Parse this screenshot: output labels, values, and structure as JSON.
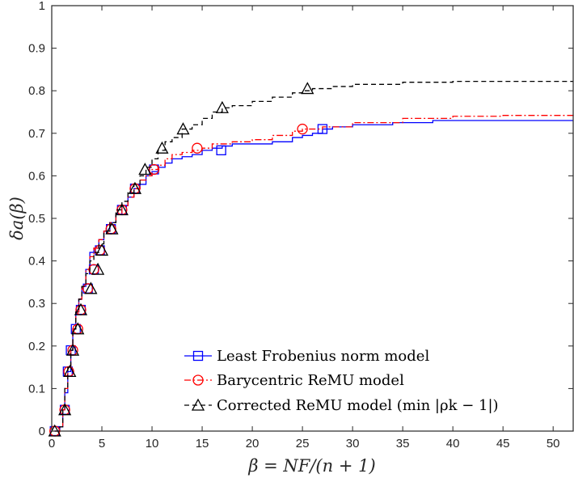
{
  "chart_data": {
    "type": "line",
    "title": "",
    "xlabel": "β = NF/(n + 1)",
    "ylabel": "δa(β)",
    "xlim": [
      0,
      52
    ],
    "ylim": [
      0,
      1
    ],
    "xticks": [
      0,
      5,
      10,
      15,
      20,
      25,
      30,
      35,
      40,
      45,
      50
    ],
    "yticks": [
      0,
      0.1,
      0.2,
      0.3,
      0.4,
      0.5,
      0.6,
      0.7,
      0.8,
      0.9,
      1
    ],
    "xtick_labels": [
      "0",
      "5",
      "10",
      "15",
      "20",
      "25",
      "30",
      "35",
      "40",
      "45",
      "50"
    ],
    "ytick_labels": [
      "0",
      "0.1",
      "0.2",
      "0.3",
      "0.4",
      "0.5",
      "0.6",
      "0.7",
      "0.8",
      "0.9",
      "1"
    ],
    "grid": false,
    "legend_position": "bottom-right",
    "series": [
      {
        "name": "Least Frobenius norm model",
        "color": "#0000ff",
        "line_style": "solid",
        "marker": "square",
        "x": [
          0.3,
          0.5,
          0.8,
          1.1,
          1.3,
          1.6,
          1.9,
          2.1,
          2.4,
          2.7,
          3.0,
          3.4,
          3.8,
          4.2,
          4.7,
          5.2,
          5.8,
          6.4,
          7.0,
          7.6,
          8.2,
          8.8,
          9.4,
          10.0,
          10.6,
          11.3,
          12.0,
          13.0,
          14.0,
          15.0,
          16.0,
          17.0,
          18.0,
          20.0,
          22.0,
          24.0,
          25.0,
          26.0,
          27.0,
          28.0,
          30.0,
          32.0,
          34.0,
          36.0,
          38.0,
          40.0,
          45.0,
          52.0
        ],
        "y": [
          0.0,
          0.0,
          0.01,
          0.05,
          0.09,
          0.14,
          0.19,
          0.24,
          0.28,
          0.31,
          0.34,
          0.38,
          0.42,
          0.43,
          0.45,
          0.47,
          0.49,
          0.51,
          0.53,
          0.55,
          0.57,
          0.58,
          0.6,
          0.61,
          0.62,
          0.63,
          0.64,
          0.645,
          0.65,
          0.66,
          0.665,
          0.67,
          0.675,
          0.675,
          0.68,
          0.69,
          0.695,
          0.7,
          0.71,
          0.715,
          0.72,
          0.72,
          0.725,
          0.725,
          0.73,
          0.73,
          0.73,
          0.73
        ],
        "marker_x": [
          0.3,
          1.3,
          1.6,
          1.9,
          2.4,
          2.9,
          3.6,
          4.2,
          4.8,
          5.9,
          7.0,
          8.3,
          10.2,
          16.9,
          27.0
        ],
        "marker_y": [
          0.0,
          0.05,
          0.14,
          0.19,
          0.24,
          0.285,
          0.335,
          0.38,
          0.425,
          0.475,
          0.52,
          0.57,
          0.615,
          0.66,
          0.71
        ]
      },
      {
        "name": "Barycentric ReMU model",
        "color": "#ff0000",
        "line_style": "dashdot",
        "marker": "circle",
        "x": [
          0.3,
          0.5,
          0.8,
          1.1,
          1.3,
          1.6,
          1.9,
          2.1,
          2.4,
          2.7,
          3.0,
          3.4,
          3.8,
          4.2,
          4.7,
          5.2,
          5.8,
          6.4,
          7.0,
          7.6,
          8.2,
          8.8,
          9.4,
          10.0,
          10.6,
          11.3,
          12.0,
          13.0,
          14.0,
          15.0,
          16.0,
          18.0,
          20.0,
          22.0,
          24.0,
          25.0,
          27.0,
          30.0,
          35.0,
          40.0,
          45.0,
          52.0
        ],
        "y": [
          0.0,
          0.0,
          0.01,
          0.05,
          0.1,
          0.15,
          0.19,
          0.24,
          0.28,
          0.31,
          0.34,
          0.38,
          0.41,
          0.43,
          0.45,
          0.47,
          0.49,
          0.51,
          0.53,
          0.55,
          0.57,
          0.59,
          0.6,
          0.615,
          0.625,
          0.64,
          0.65,
          0.655,
          0.66,
          0.665,
          0.675,
          0.68,
          0.685,
          0.695,
          0.705,
          0.71,
          0.715,
          0.725,
          0.735,
          0.74,
          0.742,
          0.745
        ],
        "marker_x": [
          0.3,
          1.3,
          1.7,
          2.1,
          2.6,
          2.9,
          3.6,
          4.2,
          4.8,
          5.9,
          7.0,
          8.3,
          10.2,
          14.5,
          25.0
        ],
        "marker_y": [
          0.0,
          0.05,
          0.14,
          0.19,
          0.24,
          0.285,
          0.335,
          0.38,
          0.425,
          0.475,
          0.52,
          0.57,
          0.615,
          0.665,
          0.71
        ]
      },
      {
        "name": "Corrected ReMU model (min |ρk − 1|)",
        "color": "#000000",
        "line_style": "dashed",
        "marker": "triangle",
        "x": [
          0.3,
          0.5,
          0.8,
          1.1,
          1.3,
          1.6,
          1.9,
          2.1,
          2.4,
          2.7,
          3.0,
          3.4,
          3.8,
          4.2,
          4.7,
          5.2,
          5.8,
          6.4,
          7.0,
          7.6,
          8.2,
          8.8,
          9.4,
          10.0,
          10.6,
          11.3,
          12.0,
          13.0,
          14.0,
          15.0,
          16.0,
          17.0,
          18.0,
          20.0,
          22.0,
          24.0,
          25.0,
          26.0,
          28.0,
          30.0,
          35.0,
          40.0,
          45.0,
          52.0
        ],
        "y": [
          0.0,
          0.0,
          0.01,
          0.05,
          0.1,
          0.15,
          0.19,
          0.24,
          0.28,
          0.31,
          0.34,
          0.37,
          0.4,
          0.42,
          0.44,
          0.47,
          0.49,
          0.52,
          0.54,
          0.56,
          0.58,
          0.6,
          0.62,
          0.64,
          0.66,
          0.68,
          0.69,
          0.71,
          0.72,
          0.735,
          0.75,
          0.76,
          0.765,
          0.775,
          0.785,
          0.795,
          0.8,
          0.805,
          0.81,
          0.815,
          0.82,
          0.822,
          0.822,
          0.822
        ],
        "marker_x": [
          0.3,
          1.3,
          1.8,
          2.1,
          2.6,
          2.9,
          3.9,
          4.6,
          5.0,
          6.0,
          7.0,
          8.3,
          9.3,
          11.0,
          13.1,
          17.0,
          25.5
        ],
        "marker_y": [
          0.0,
          0.05,
          0.14,
          0.19,
          0.24,
          0.285,
          0.335,
          0.38,
          0.425,
          0.475,
          0.52,
          0.57,
          0.615,
          0.665,
          0.71,
          0.76,
          0.805
        ]
      }
    ]
  }
}
